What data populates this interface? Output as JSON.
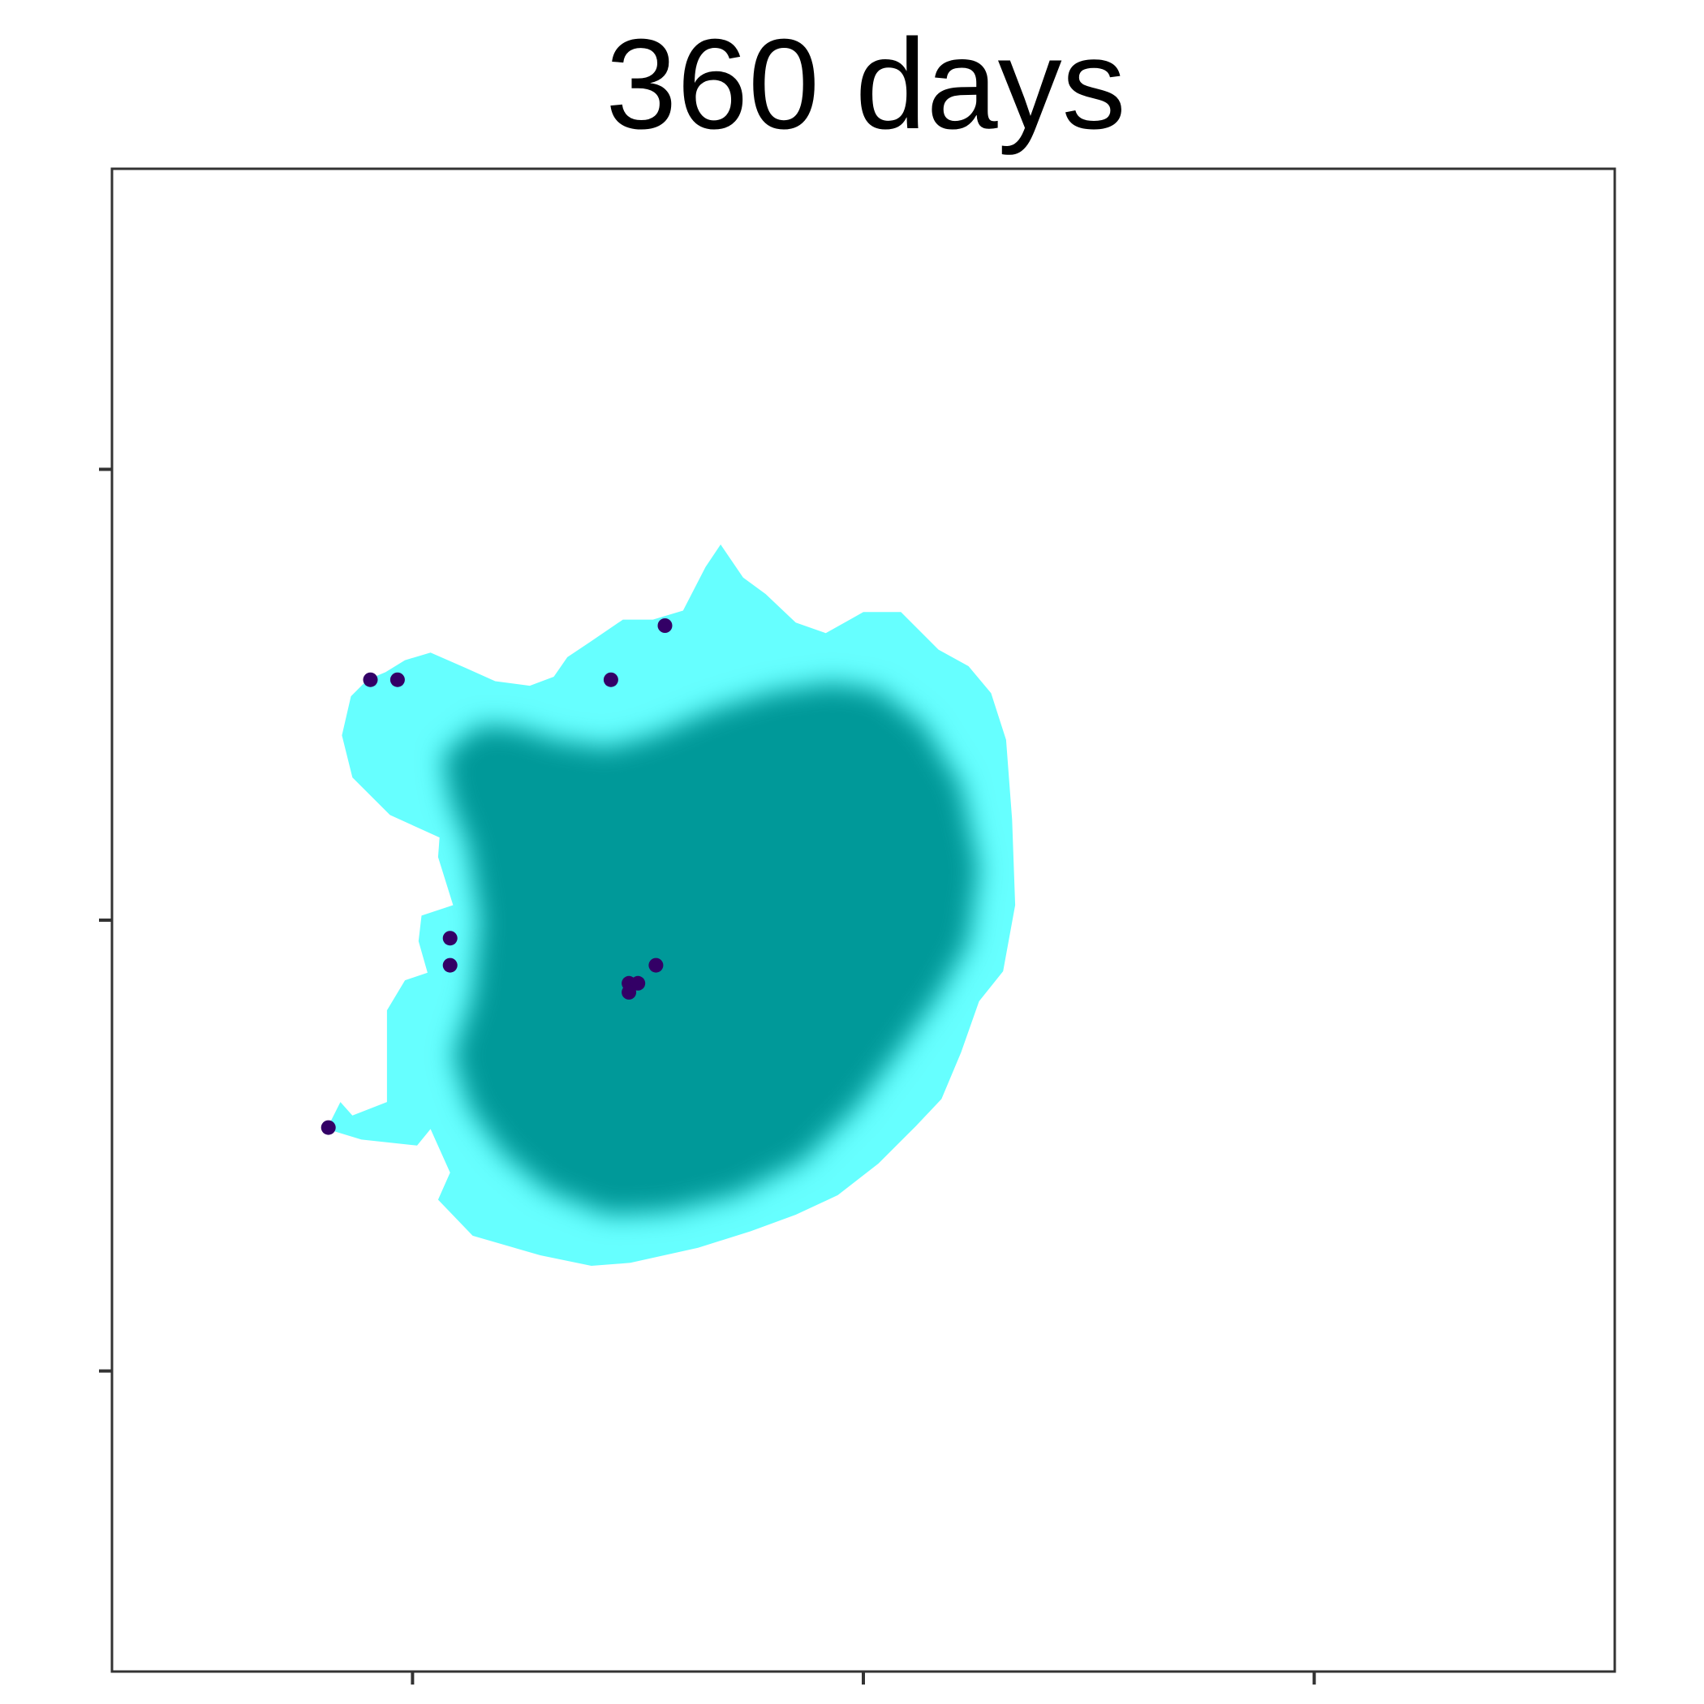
{
  "chart_data": {
    "type": "scatter",
    "title": "360 days",
    "xlabel": "",
    "ylabel": "",
    "xlim": [
      0,
      100
    ],
    "ylim": [
      0,
      100
    ],
    "x_ticks": [
      20,
      50,
      80
    ],
    "y_ticks": [
      20,
      50,
      80
    ],
    "tick_labels_shown": false,
    "grid": false,
    "legend": "none",
    "region": {
      "name": "",
      "outer_color": "#66ffff",
      "core_color": "#009999",
      "outer_boundary": [
        [
          30.3,
          67.5
        ],
        [
          31.8,
          68.5
        ],
        [
          34.0,
          70.0
        ],
        [
          36.0,
          70.0
        ],
        [
          38.0,
          70.6
        ],
        [
          39.5,
          73.5
        ],
        [
          40.5,
          75.0
        ],
        [
          42.0,
          72.8
        ],
        [
          43.5,
          71.7
        ],
        [
          45.5,
          69.8
        ],
        [
          47.5,
          69.1
        ],
        [
          50.0,
          70.5
        ],
        [
          52.5,
          70.5
        ],
        [
          55.0,
          68.0
        ],
        [
          57.0,
          66.9
        ],
        [
          58.5,
          65.1
        ],
        [
          59.5,
          62.0
        ],
        [
          59.9,
          56.7
        ],
        [
          60.1,
          51.0
        ],
        [
          59.3,
          46.6
        ],
        [
          57.7,
          44.6
        ],
        [
          56.5,
          41.2
        ],
        [
          55.2,
          38.1
        ],
        [
          53.5,
          36.3
        ],
        [
          51.0,
          33.8
        ],
        [
          48.3,
          31.7
        ],
        [
          45.5,
          30.4
        ],
        [
          42.5,
          29.3
        ],
        [
          39.0,
          28.2
        ],
        [
          34.5,
          27.2
        ],
        [
          31.9,
          27.0
        ],
        [
          28.5,
          27.7
        ],
        [
          24.0,
          29.0
        ],
        [
          21.7,
          31.4
        ],
        [
          22.5,
          33.2
        ],
        [
          21.2,
          36.1
        ],
        [
          20.3,
          35.0
        ],
        [
          16.6,
          35.4
        ],
        [
          14.3,
          36.1
        ],
        [
          15.2,
          37.9
        ],
        [
          16.0,
          37.0
        ],
        [
          18.3,
          37.9
        ],
        [
          18.3,
          44.0
        ],
        [
          19.5,
          46.0
        ],
        [
          21.0,
          46.5
        ],
        [
          20.4,
          48.6
        ],
        [
          20.6,
          50.3
        ],
        [
          22.7,
          51.0
        ],
        [
          21.7,
          54.2
        ],
        [
          21.8,
          55.5
        ],
        [
          18.5,
          57.0
        ],
        [
          16.0,
          59.5
        ],
        [
          15.3,
          62.3
        ],
        [
          15.9,
          64.9
        ],
        [
          17.0,
          66.0
        ],
        [
          18.2,
          66.5
        ],
        [
          19.5,
          67.3
        ],
        [
          21.2,
          67.8
        ],
        [
          23.5,
          66.8
        ],
        [
          25.5,
          65.9
        ],
        [
          27.8,
          65.6
        ],
        [
          29.4,
          66.2
        ]
      ],
      "core_boundary": [
        [
          22.0,
          61.0
        ],
        [
          24.5,
          63.0
        ],
        [
          27.0,
          62.8
        ],
        [
          29.5,
          62.0
        ],
        [
          33.0,
          61.5
        ],
        [
          36.0,
          62.3
        ],
        [
          40.0,
          64.0
        ],
        [
          44.0,
          65.2
        ],
        [
          48.0,
          65.8
        ],
        [
          51.0,
          65.3
        ],
        [
          54.0,
          63.0
        ],
        [
          56.5,
          59.0
        ],
        [
          57.7,
          53.5
        ],
        [
          57.0,
          48.5
        ],
        [
          55.0,
          45.0
        ],
        [
          52.5,
          41.5
        ],
        [
          49.5,
          37.5
        ],
        [
          46.0,
          34.0
        ],
        [
          41.5,
          31.7
        ],
        [
          37.0,
          30.6
        ],
        [
          33.0,
          30.4
        ],
        [
          29.0,
          32.0
        ],
        [
          26.0,
          34.5
        ],
        [
          23.8,
          37.5
        ],
        [
          22.7,
          41.0
        ],
        [
          24.0,
          45.0
        ],
        [
          24.5,
          50.0
        ],
        [
          23.7,
          55.0
        ],
        [
          22.5,
          58.0
        ]
      ]
    },
    "points": [
      {
        "x": 17.2,
        "y": 66.0
      },
      {
        "x": 19.0,
        "y": 66.0
      },
      {
        "x": 33.2,
        "y": 66.0
      },
      {
        "x": 36.8,
        "y": 69.6
      },
      {
        "x": 22.5,
        "y": 48.8
      },
      {
        "x": 22.5,
        "y": 47.0
      },
      {
        "x": 36.2,
        "y": 47.0
      },
      {
        "x": 34.4,
        "y": 45.8
      },
      {
        "x": 35.0,
        "y": 45.8
      },
      {
        "x": 34.4,
        "y": 45.2
      },
      {
        "x": 14.4,
        "y": 36.2
      }
    ],
    "point_color": "#330066"
  }
}
